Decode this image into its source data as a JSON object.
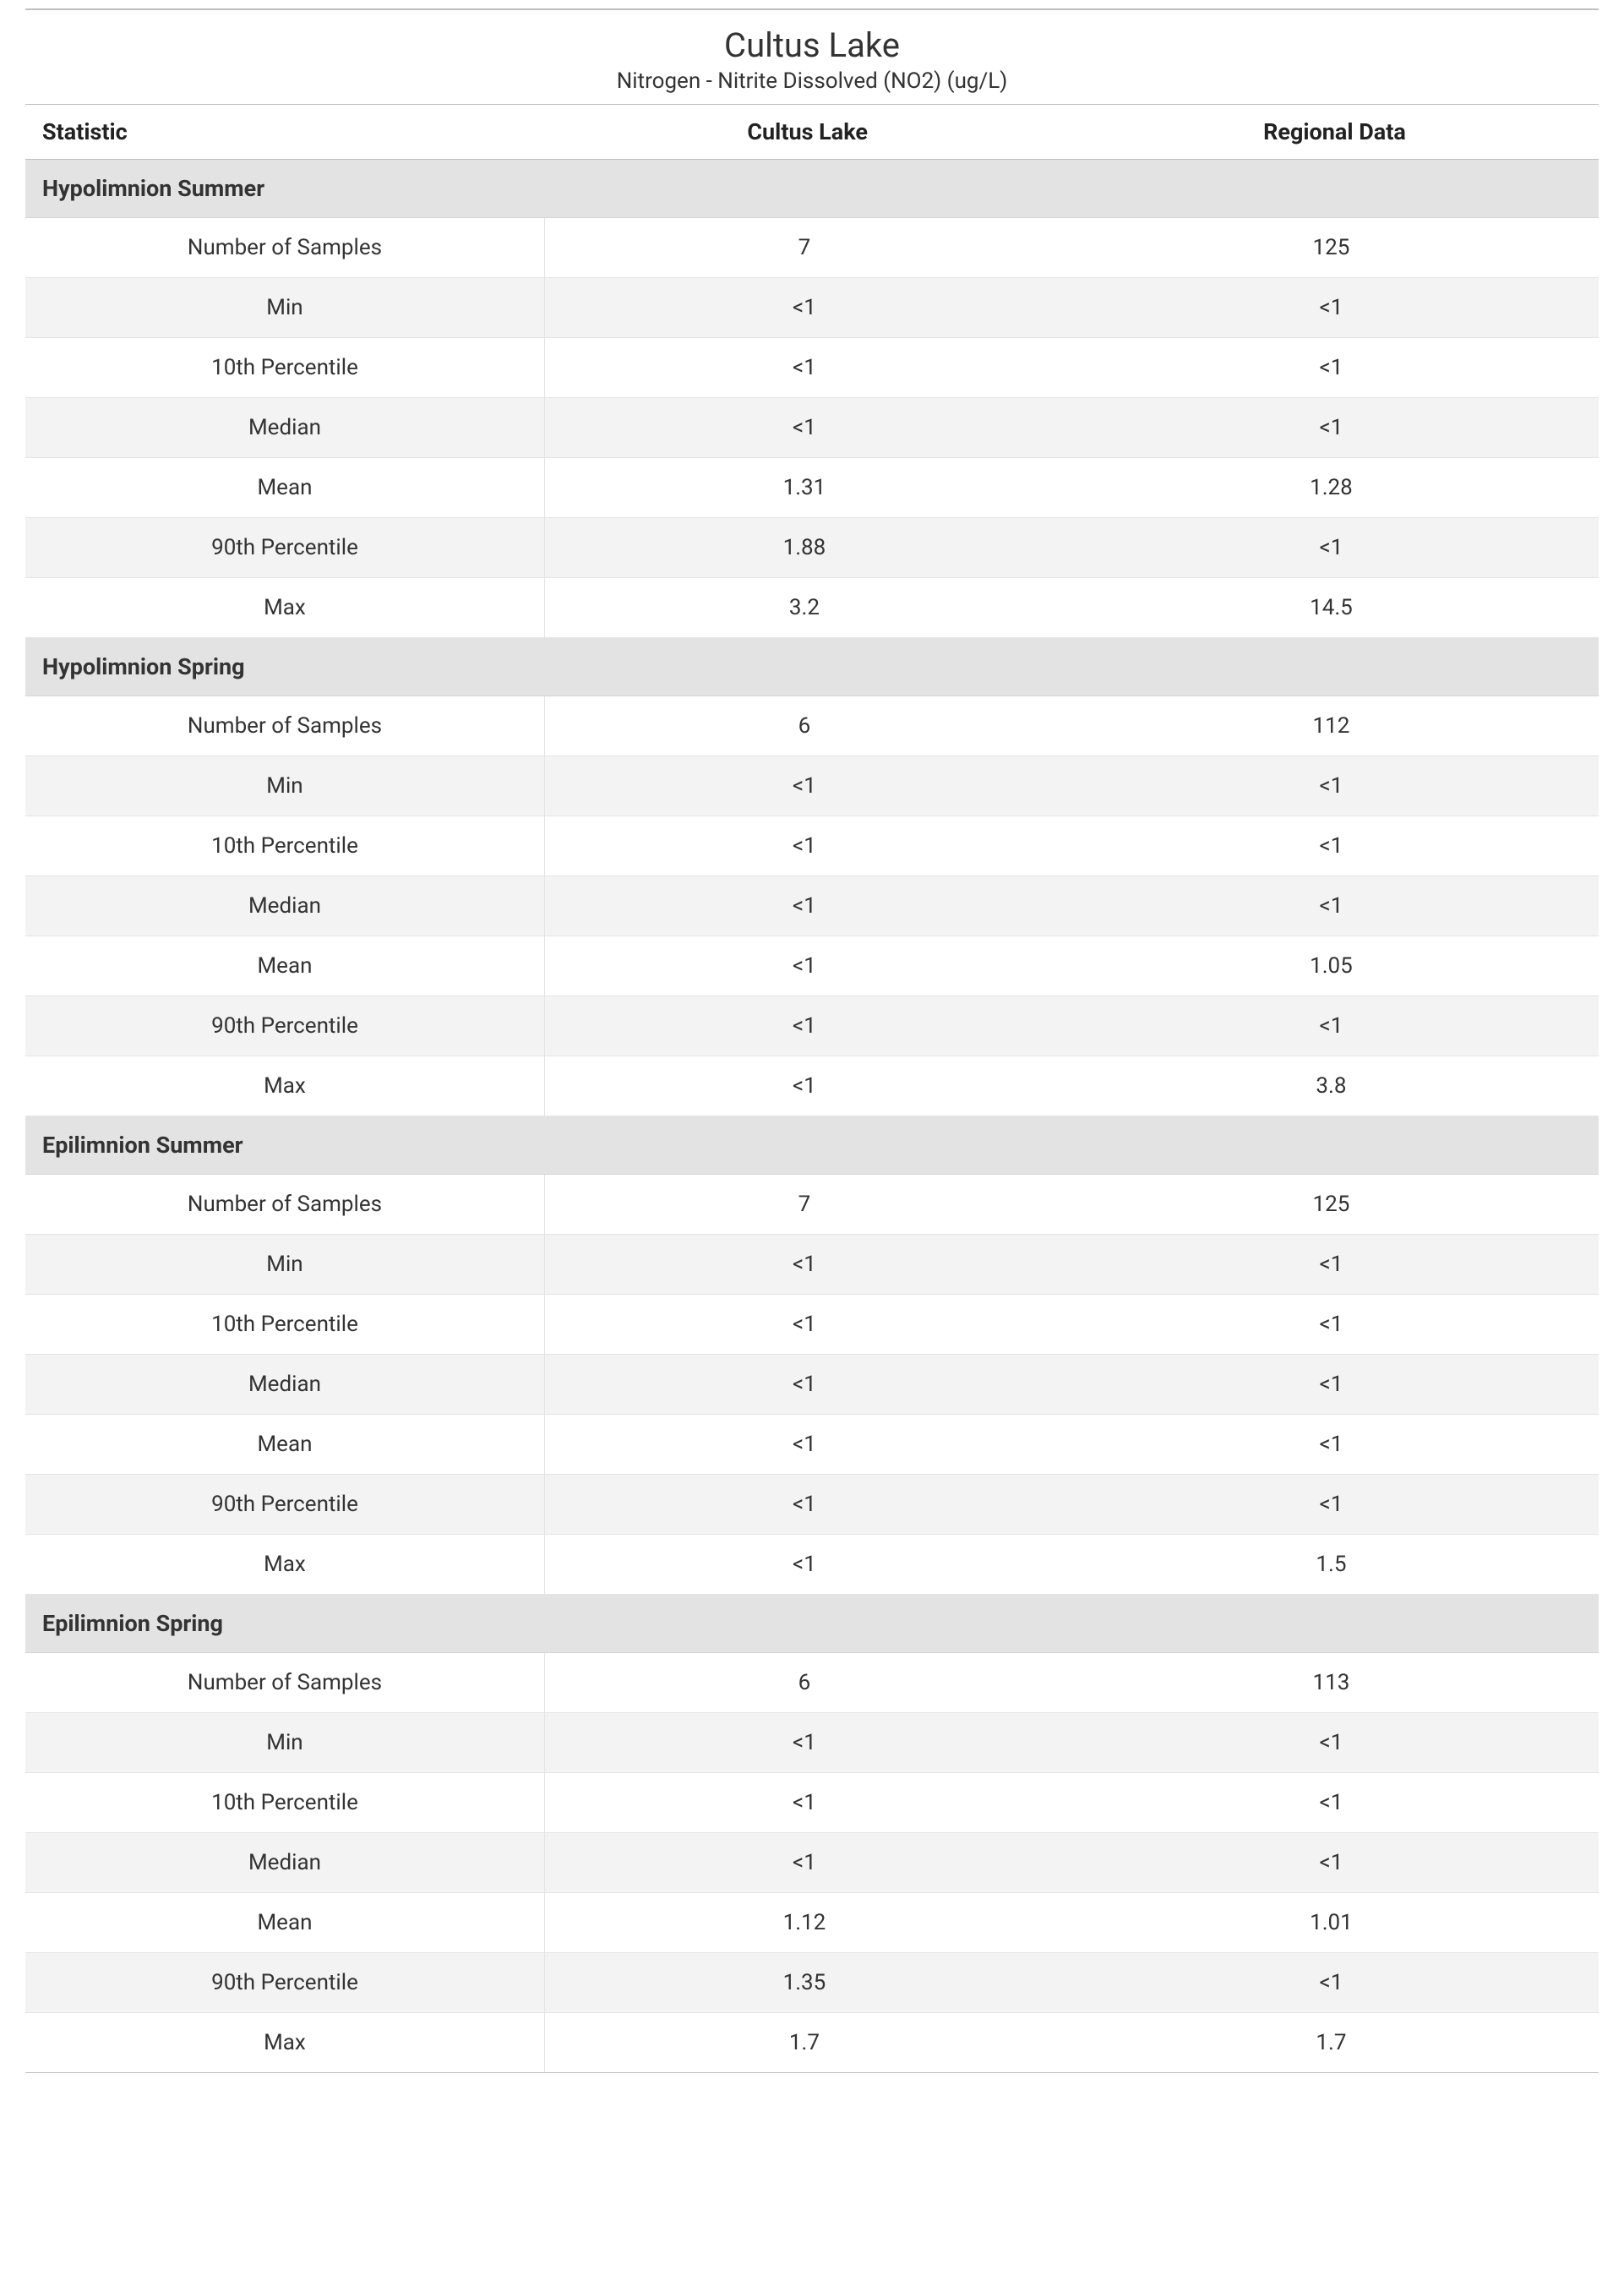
{
  "header": {
    "title": "Cultus Lake",
    "subtitle": "Nitrogen - Nitrite Dissolved (NO2) (ug/L)"
  },
  "columns": {
    "statistic": "Statistic",
    "site": "Cultus Lake",
    "region": "Regional Data"
  },
  "stat_labels": {
    "n": "Number of Samples",
    "min": "Min",
    "p10": "10th Percentile",
    "median": "Median",
    "mean": "Mean",
    "p90": "90th Percentile",
    "max": "Max"
  },
  "sections": [
    {
      "title": "Hypolimnion Summer",
      "rows": {
        "n": {
          "site": "7",
          "region": "125"
        },
        "min": {
          "site": "<1",
          "region": "<1"
        },
        "p10": {
          "site": "<1",
          "region": "<1"
        },
        "median": {
          "site": "<1",
          "region": "<1"
        },
        "mean": {
          "site": "1.31",
          "region": "1.28"
        },
        "p90": {
          "site": "1.88",
          "region": "<1"
        },
        "max": {
          "site": "3.2",
          "region": "14.5"
        }
      }
    },
    {
      "title": "Hypolimnion Spring",
      "rows": {
        "n": {
          "site": "6",
          "region": "112"
        },
        "min": {
          "site": "<1",
          "region": "<1"
        },
        "p10": {
          "site": "<1",
          "region": "<1"
        },
        "median": {
          "site": "<1",
          "region": "<1"
        },
        "mean": {
          "site": "<1",
          "region": "1.05"
        },
        "p90": {
          "site": "<1",
          "region": "<1"
        },
        "max": {
          "site": "<1",
          "region": "3.8"
        }
      }
    },
    {
      "title": "Epilimnion Summer",
      "rows": {
        "n": {
          "site": "7",
          "region": "125"
        },
        "min": {
          "site": "<1",
          "region": "<1"
        },
        "p10": {
          "site": "<1",
          "region": "<1"
        },
        "median": {
          "site": "<1",
          "region": "<1"
        },
        "mean": {
          "site": "<1",
          "region": "<1"
        },
        "p90": {
          "site": "<1",
          "region": "<1"
        },
        "max": {
          "site": "<1",
          "region": "1.5"
        }
      }
    },
    {
      "title": "Epilimnion Spring",
      "rows": {
        "n": {
          "site": "6",
          "region": "113"
        },
        "min": {
          "site": "<1",
          "region": "<1"
        },
        "p10": {
          "site": "<1",
          "region": "<1"
        },
        "median": {
          "site": "<1",
          "region": "<1"
        },
        "mean": {
          "site": "1.12",
          "region": "1.01"
        },
        "p90": {
          "site": "1.35",
          "region": "<1"
        },
        "max": {
          "site": "1.7",
          "region": "1.7"
        }
      }
    }
  ]
}
